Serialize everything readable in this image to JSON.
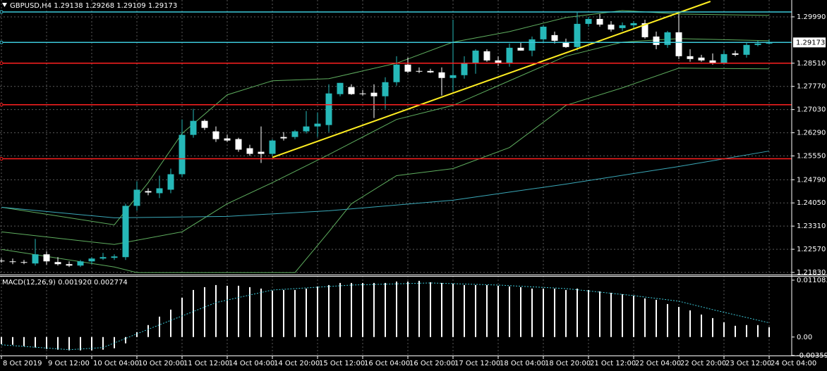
{
  "chart_data": [
    {
      "type": "candlestick",
      "title": "GBPUSD,H4  1.29138 1.29268 1.29109 1.29173",
      "categories": [
        "8 Oct 2019",
        null,
        null,
        null,
        "9 Oct 12:00",
        null,
        null,
        null,
        "10 Oct 04:00",
        null,
        null,
        null,
        "10 Oct 20:00",
        null,
        null,
        null,
        "11 Oct 12:00",
        null,
        null,
        null,
        "14 Oct 04:00",
        null,
        null,
        null,
        "14 Oct 20:00",
        null,
        null,
        null,
        "15 Oct 12:00",
        null,
        null,
        null,
        "16 Oct 04:00",
        null,
        null,
        null,
        "16 Oct 20:00",
        null,
        null,
        null,
        "17 Oct 12:00",
        null,
        null,
        null,
        "18 Oct 04:00",
        null,
        null,
        null,
        "18 Oct 20:00",
        null,
        null,
        null,
        "21 Oct 12:00",
        null,
        null,
        null,
        "22 Oct 04:00",
        null,
        null,
        null,
        "22 Oct 20:00",
        null,
        null,
        null,
        "23 Oct 12:00",
        null,
        null,
        null,
        "24 Oct 04:00"
      ],
      "open": [
        1.22207,
        1.22184,
        1.22162,
        1.22117,
        1.22409,
        1.22162,
        1.22095,
        1.2205,
        1.22184,
        1.22274,
        1.22297,
        1.22319,
        1.23956,
        1.24427,
        1.2436,
        1.24472,
        1.24966,
        1.26222,
        1.2667,
        1.26334,
        1.2611,
        1.26087,
        1.25796,
        1.25683,
        1.25616,
        1.26154,
        1.26154,
        1.26334,
        1.26491,
        1.26536,
        1.27523,
        1.27747,
        1.27545,
        1.27568,
        1.27455,
        1.27904,
        1.28465,
        1.28263,
        1.28263,
        1.28218,
        1.28039,
        1.28128,
        1.2851,
        1.28891,
        1.28599,
        1.2851,
        1.29003,
        1.28913,
        1.29272,
        1.29407,
        1.29183,
        1.29026,
        1.29766,
        1.29923,
        1.29743,
        1.29631,
        1.29721,
        1.29788,
        1.29362,
        1.29093,
        1.29497,
        1.28734,
        1.28689,
        1.28599,
        1.2851,
        1.28824,
        1.28779,
        1.29093,
        1.29138
      ],
      "high": [
        1.22274,
        1.22274,
        1.22229,
        1.22902,
        1.22498,
        1.22319,
        1.22184,
        1.22229,
        1.22319,
        1.22454,
        1.22409,
        1.24024,
        1.24741,
        1.24517,
        1.24921,
        1.25145,
        1.26715,
        1.27052,
        1.26715,
        1.26491,
        1.26222,
        1.26132,
        1.25908,
        1.26491,
        1.26087,
        1.26311,
        1.26379,
        1.26984,
        1.2694,
        1.27837,
        1.27882,
        1.27837,
        1.27657,
        1.27837,
        1.28061,
        1.28734,
        1.28689,
        1.28375,
        1.2833,
        1.28375,
        1.299,
        1.28734,
        1.28958,
        1.28958,
        1.28734,
        1.29138,
        1.29183,
        1.29362,
        1.29721,
        1.29519,
        1.29295,
        1.30125,
        1.2999,
        1.3008,
        1.29855,
        1.29811,
        1.29855,
        1.299,
        1.29519,
        1.29541,
        1.3008,
        1.28958,
        1.28779,
        1.28824,
        1.28913,
        1.28913,
        1.29183,
        1.29227,
        1.29268
      ],
      "low": [
        1.2214,
        1.22095,
        1.22095,
        1.2205,
        1.22072,
        1.2205,
        1.22005,
        1.22005,
        1.22095,
        1.22229,
        1.22229,
        1.22229,
        1.23799,
        1.24293,
        1.24203,
        1.2436,
        1.24876,
        1.26132,
        1.26379,
        1.25998,
        1.25998,
        1.25683,
        1.25549,
        1.25325,
        1.25549,
        1.26042,
        1.26087,
        1.26267,
        1.26154,
        1.26311,
        1.27455,
        1.275,
        1.27478,
        1.2676,
        1.27052,
        1.27792,
        1.28196,
        1.28196,
        1.28196,
        1.27478,
        1.27612,
        1.28016,
        1.28173,
        1.28555,
        1.2842,
        1.28398,
        1.28913,
        1.28734,
        1.29183,
        1.29138,
        1.29003,
        1.28913,
        1.29676,
        1.29676,
        1.29519,
        1.29541,
        1.29631,
        1.29295,
        1.28958,
        1.29003,
        1.28644,
        1.28555,
        1.28555,
        1.28465,
        1.28465,
        1.28734,
        1.28689,
        1.29048,
        1.29109
      ],
      "close": [
        1.22184,
        1.22162,
        1.2214,
        1.22409,
        1.22184,
        1.22095,
        1.2205,
        1.22184,
        1.22274,
        1.22319,
        1.22341,
        1.23956,
        1.24472,
        1.24383,
        1.24517,
        1.24966,
        1.26222,
        1.2667,
        1.26446,
        1.26087,
        1.26042,
        1.25751,
        1.25616,
        1.25616,
        1.26042,
        1.2611,
        1.26334,
        1.26491,
        1.26581,
        1.27545,
        1.27882,
        1.27523,
        1.27523,
        1.27455,
        1.27904,
        1.28465,
        1.28241,
        1.28241,
        1.28218,
        1.28039,
        1.28128,
        1.2851,
        1.28913,
        1.28599,
        1.2851,
        1.29003,
        1.28913,
        1.29272,
        1.29676,
        1.29227,
        1.29026,
        1.29766,
        1.29923,
        1.29743,
        1.29586,
        1.29721,
        1.29788,
        1.2934,
        1.29093,
        1.29497,
        1.28734,
        1.28644,
        1.28599,
        1.2851,
        1.28801,
        1.28779,
        1.29093,
        1.29138,
        1.29173
      ],
      "up_color": "#26b8b8",
      "down_color": "#ffffff",
      "overlays": [
        {
          "color": "#5fae5f",
          "x": [
            0,
            10,
            13,
            16,
            20,
            24,
            29,
            35,
            40,
            45,
            50,
            55,
            60,
            68
          ],
          "values": [
            1.23911,
            1.23351,
            1.24697,
            1.26267,
            1.275,
            1.27949,
            1.28016,
            1.2851,
            1.29183,
            1.29519,
            1.29968,
            1.30192,
            1.3008,
            1.30035
          ]
        },
        {
          "color": "#5fae5f",
          "x": [
            0,
            10,
            16,
            20,
            24,
            29,
            32,
            35,
            40,
            45,
            50,
            55,
            60,
            68
          ],
          "values": [
            1.23126,
            1.22723,
            1.23126,
            1.24024,
            1.24697,
            1.25594,
            1.26154,
            1.26715,
            1.27164,
            1.27949,
            1.28734,
            1.29183,
            1.29295,
            1.29227
          ]
        },
        {
          "color": "#5fae5f",
          "x": [
            0,
            10,
            12,
            26,
            29,
            31,
            35,
            40,
            45,
            50,
            55,
            60,
            68
          ],
          "values": [
            1.22566,
            1.22005,
            1.21826,
            1.21826,
            1.23126,
            1.24024,
            1.24921,
            1.25145,
            1.25818,
            1.27164,
            1.27725,
            1.28353,
            1.2833
          ]
        },
        {
          "color": "#3aa8b8",
          "x": [
            0,
            10,
            20,
            29,
            40,
            50,
            60,
            68
          ],
          "values": [
            1.23911,
            1.23575,
            1.2362,
            1.23799,
            1.24136,
            1.24652,
            1.25212,
            1.25706
          ]
        }
      ],
      "trendline": {
        "color": "#ffee22",
        "x": [
          24,
          62.8
        ],
        "values": [
          1.25504,
          1.30483
        ]
      },
      "hlines": [
        {
          "value": 1.30147,
          "color": "#3cc8d8"
        },
        {
          "value": 1.2851,
          "color": "#ff2020"
        },
        {
          "value": 1.27186,
          "color": "#ff2020"
        },
        {
          "value": 1.25459,
          "color": "#ff2020"
        }
      ],
      "bid": {
        "value": 1.29173,
        "color": "#3cc8d8"
      },
      "ylim": [
        1.21763,
        1.30528
      ],
      "yticks": [
        {
          "value": 1.2999,
          "label": "1.29990"
        },
        {
          "value": 1.2851,
          "label": "1.28510"
        },
        {
          "value": 1.2777,
          "label": "1.27770"
        },
        {
          "value": 1.2703,
          "label": "1.27030"
        },
        {
          "value": 1.2629,
          "label": "1.26290"
        },
        {
          "value": 1.2555,
          "label": "1.25550"
        },
        {
          "value": 1.2479,
          "label": "1.24790"
        },
        {
          "value": 1.2405,
          "label": "1.24050"
        },
        {
          "value": 1.2331,
          "label": "1.23310"
        },
        {
          "value": 1.2257,
          "label": "1.22570"
        },
        {
          "value": 1.2183,
          "label": "1.21830"
        }
      ],
      "grid": true
    },
    {
      "type": "bar",
      "title": "MACD(12,26,9) 0.001920 0.002774",
      "color": "#ffffff",
      "values": [
        -0.00137,
        -0.00151,
        -0.00178,
        -0.00205,
        -0.00233,
        -0.00246,
        -0.0026,
        -0.0026,
        -0.0026,
        -0.00246,
        -0.00219,
        -0.00123,
        0.00096,
        0.00233,
        0.00397,
        0.00534,
        0.00766,
        0.00917,
        0.00972,
        0.01013,
        0.00999,
        0.00999,
        0.00972,
        0.00944,
        0.00903,
        0.00917,
        0.00917,
        0.00944,
        0.00985,
        0.01013,
        0.01054,
        0.01054,
        0.01054,
        0.01054,
        0.01054,
        0.01081,
        0.01081,
        0.01095,
        0.01067,
        0.01054,
        0.0104,
        0.01013,
        0.01013,
        0.01013,
        0.00999,
        0.00985,
        0.00972,
        0.00944,
        0.00944,
        0.00944,
        0.00917,
        0.00944,
        0.00917,
        0.00889,
        0.00862,
        0.00835,
        0.00807,
        0.00753,
        0.00725,
        0.00643,
        0.00588,
        0.0052,
        0.00438,
        0.00369,
        0.00287,
        0.00219,
        0.00233,
        0.00233,
        0.00192
      ],
      "signal": {
        "color": "#3cc8d8",
        "x": [
          0,
          6,
          9,
          13,
          19,
          24,
          31,
          38,
          44,
          50,
          56,
          60,
          63,
          68
        ],
        "values": [
          -0.00151,
          -0.00246,
          -0.00205,
          0.00151,
          0.00671,
          0.00917,
          0.01013,
          0.01054,
          0.01013,
          0.00944,
          0.00807,
          0.00698,
          0.00534,
          0.002774
        ]
      },
      "ylim": [
        -0.0036,
        0.0119
      ],
      "yticks": [
        0.011083,
        {
          "value": 0,
          "label": "0.00"
        },
        -0.003597
      ]
    }
  ]
}
